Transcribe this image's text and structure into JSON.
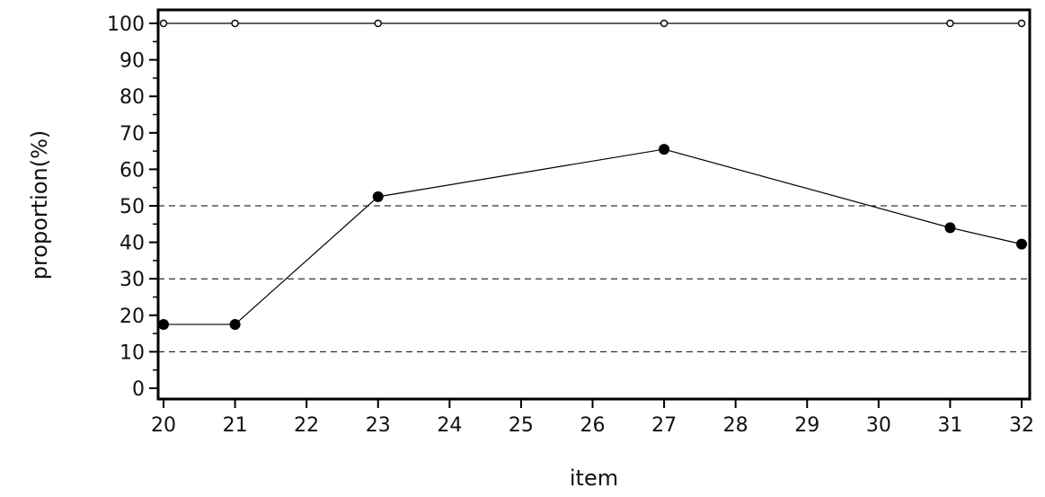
{
  "chart_data": {
    "type": "line",
    "title": "",
    "xlabel": "item",
    "ylabel": "proportion(%)",
    "x_ticks": [
      "20",
      "21",
      "22",
      "23",
      "24",
      "25",
      "26",
      "27",
      "28",
      "29",
      "30",
      "31",
      "32"
    ],
    "y_ticks": [
      "0",
      "10",
      "20",
      "30",
      "40",
      "50",
      "60",
      "70",
      "80",
      "90",
      "100"
    ],
    "xlim": [
      20,
      32
    ],
    "ylim": [
      0,
      100
    ],
    "reference_lines_y": [
      10,
      30,
      50
    ],
    "grid": false,
    "series": [
      {
        "marker": "open-symbol",
        "color": "#000000",
        "x": [
          20,
          21,
          23,
          27,
          31,
          32
        ],
        "y": [
          100,
          100,
          100,
          100,
          100,
          100
        ]
      },
      {
        "marker": "filled-circle",
        "color": "#000000",
        "x": [
          20,
          21,
          23,
          27,
          31,
          32
        ],
        "y": [
          17.5,
          17.5,
          52.5,
          65.5,
          44,
          39.5
        ]
      }
    ]
  }
}
